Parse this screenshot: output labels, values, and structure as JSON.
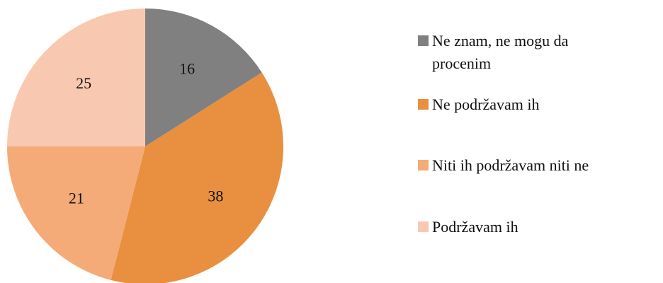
{
  "chart_data": {
    "type": "pie",
    "categories": [
      "Ne znam, ne mogu da procenim",
      "Ne podržavam ih",
      "Niti ih podržavam niti ne",
      "Podržavam ih"
    ],
    "values": [
      16,
      38,
      21,
      25
    ],
    "colors": [
      "#808080",
      "#e8903f",
      "#f4ab77",
      "#f8c9b0"
    ],
    "legend": "right"
  }
}
